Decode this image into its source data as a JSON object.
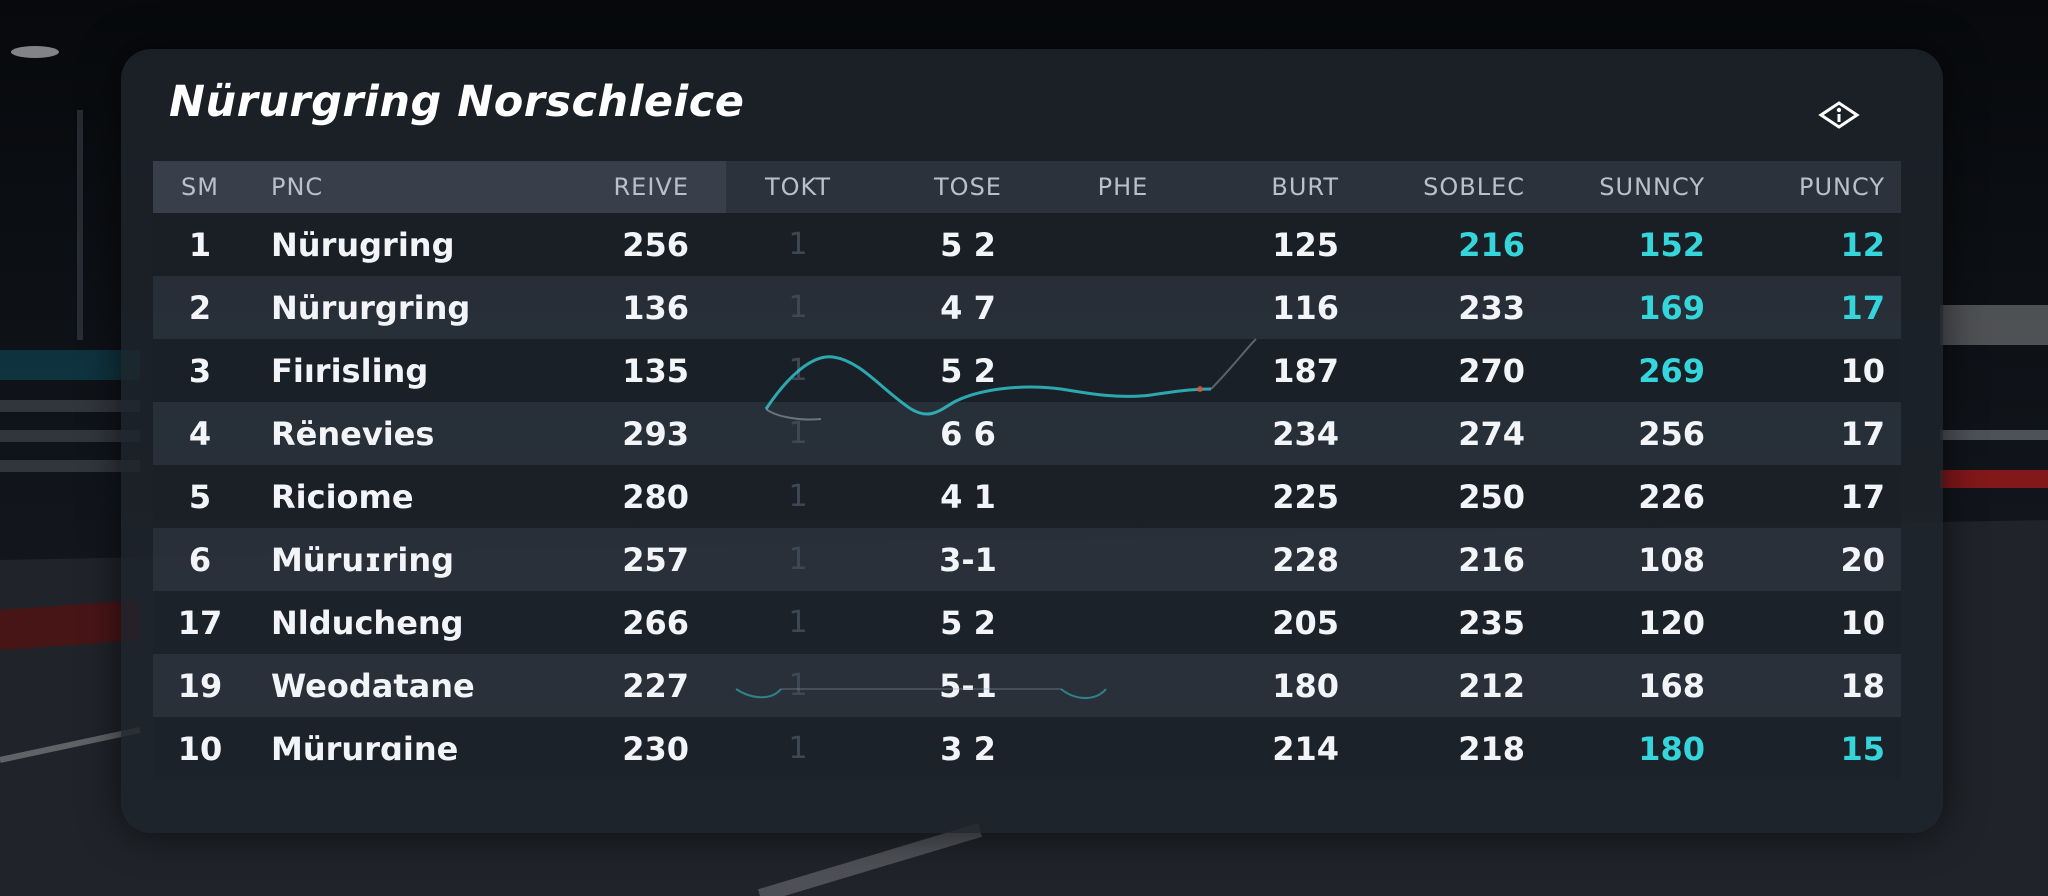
{
  "title": "Nürurgring Norschleice",
  "info_icon": "info-icon",
  "accent": "#34d6dc",
  "columns": [
    "SM",
    "PNC",
    "REIVE",
    "TOKT",
    "TOSE",
    "PHE",
    "BURT",
    "SOBLEC",
    "SUNNCY",
    "PUNCY"
  ],
  "rows": [
    {
      "sm": "1",
      "pnc": "Nürugring",
      "reive": "256",
      "tokt": "1",
      "tose": "5 2",
      "burt": "125",
      "soblec": "216",
      "sunncy": "152",
      "puncy": "12"
    },
    {
      "sm": "2",
      "pnc": "Nürurgring",
      "reive": "136",
      "tokt": "1",
      "tose": "4 7",
      "burt": "116",
      "soblec": "233",
      "sunncy": "169",
      "puncy": "17"
    },
    {
      "sm": "3",
      "pnc": "Fiırisling",
      "reive": "135",
      "tokt": "1",
      "tose": "5 2",
      "burt": "187",
      "soblec": "270",
      "sunncy": "269",
      "puncy": "10"
    },
    {
      "sm": "4",
      "pnc": "Rënevies",
      "reive": "293",
      "tokt": "1",
      "tose": "6 6",
      "burt": "234",
      "soblec": "274",
      "sunncy": "256",
      "puncy": "17"
    },
    {
      "sm": "5",
      "pnc": "Riciome",
      "reive": "280",
      "tokt": "1",
      "tose": "4 1",
      "burt": "225",
      "soblec": "250",
      "sunncy": "226",
      "puncy": "17"
    },
    {
      "sm": "6",
      "pnc": "Müruɪring",
      "reive": "257",
      "tokt": "1",
      "tose": "3-1",
      "burt": "228",
      "soblec": "216",
      "sunncy": "108",
      "puncy": "20"
    },
    {
      "sm": "17",
      "pnc": "Nlducheng",
      "reive": "266",
      "tokt": "1",
      "tose": "5 2",
      "burt": "205",
      "soblec": "235",
      "sunncy": "120",
      "puncy": "10"
    },
    {
      "sm": "19",
      "pnc": "Weodatane",
      "reive": "227",
      "tokt": "1",
      "tose": "5-1",
      "burt": "180",
      "soblec": "212",
      "sunncy": "168",
      "puncy": "18"
    },
    {
      "sm": "10",
      "pnc": "Mürurɑine",
      "reive": "230",
      "tokt": "1",
      "tose": "3 2",
      "burt": "214",
      "soblec": "218",
      "sunncy": "180",
      "puncy": "15"
    }
  ]
}
